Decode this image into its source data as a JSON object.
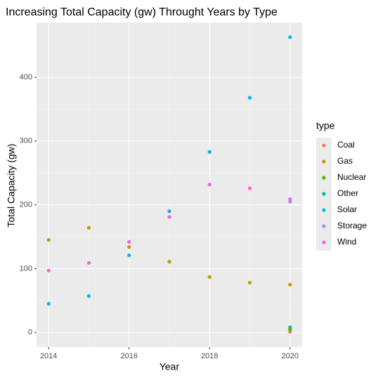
{
  "chart_data": {
    "type": "scatter",
    "title": "Increasing Total Capacity (gw) Throught Years by Type",
    "x_label": "Year",
    "y_label": "Total Capacity (gw)",
    "legend_title": "type",
    "series": [
      {
        "name": "Coal",
        "color": "#F8766D",
        "x": [
          2020
        ],
        "values": [
          1
        ]
      },
      {
        "name": "Gas",
        "color": "#C49A00",
        "x": [
          2014,
          2015,
          2016,
          2017,
          2018,
          2019,
          2020,
          2020
        ],
        "values": [
          145,
          164,
          134,
          111,
          87,
          78,
          75,
          3
        ]
      },
      {
        "name": "Nuclear",
        "color": "#53B400",
        "x": [
          2020
        ],
        "values": [
          5
        ]
      },
      {
        "name": "Other",
        "color": "#00C094",
        "x": [
          2020
        ],
        "values": [
          8
        ]
      },
      {
        "name": "Solar",
        "color": "#00B6EB",
        "x": [
          2014,
          2015,
          2016,
          2017,
          2018,
          2019,
          2020
        ],
        "values": [
          45,
          57,
          121,
          190,
          283,
          368,
          463
        ]
      },
      {
        "name": "Storage",
        "color": "#A58AFF",
        "x": [
          2020
        ],
        "values": [
          205
        ]
      },
      {
        "name": "Wind",
        "color": "#FB61D7",
        "x": [
          2014,
          2015,
          2016,
          2017,
          2018,
          2019,
          2020
        ],
        "values": [
          97,
          109,
          142,
          181,
          232,
          226,
          209
        ]
      }
    ],
    "xlim": [
      2013.7,
      2020.3
    ],
    "xticks": [
      2014,
      2016,
      2018,
      2020
    ],
    "ylim": [
      -23,
      486
    ],
    "yticks": [
      0,
      100,
      200,
      300,
      400
    ],
    "grid": true,
    "legend": "right"
  }
}
